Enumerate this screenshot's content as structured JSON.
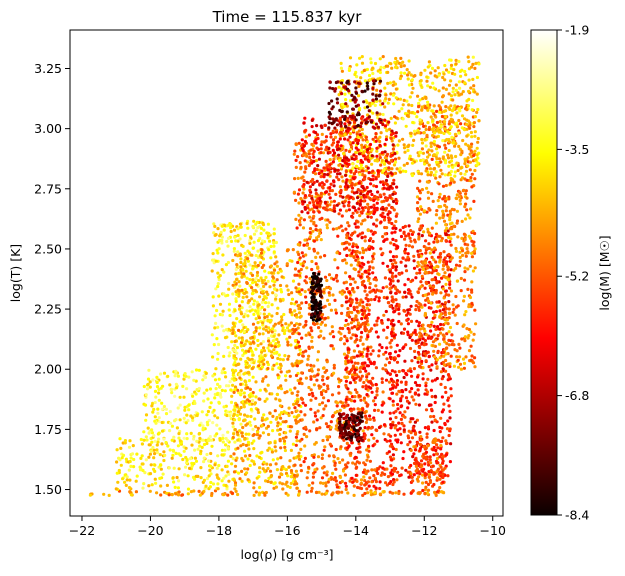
{
  "chart_data": {
    "type": "scatter",
    "title": "Time = 115.837 kyr",
    "xlabel": "log(ρ) [g cm⁻³]",
    "ylabel": "log(T) [K]",
    "xlim": [
      -22.35,
      -9.7
    ],
    "ylim": [
      1.39,
      3.41
    ],
    "xticks": [
      -22,
      -20,
      -18,
      -16,
      -14,
      -12,
      -10
    ],
    "xtick_labels": [
      "−22",
      "−20",
      "−18",
      "−16",
      "−14",
      "−12",
      "−10"
    ],
    "yticks": [
      1.5,
      1.75,
      2.0,
      2.25,
      2.5,
      2.75,
      3.0,
      3.25
    ],
    "ytick_labels": [
      "1.50",
      "1.75",
      "2.00",
      "2.25",
      "2.50",
      "2.75",
      "3.00",
      "3.25"
    ],
    "colorbar": {
      "label": "log(M) [M☉]",
      "colormap": "hot",
      "range": [
        -8.4,
        -1.9
      ],
      "ticks": [
        -1.9,
        -3.5,
        -5.2,
        -6.8,
        -8.4
      ],
      "tick_labels": [
        "-1.9",
        "-3.5",
        "-5.2",
        "-6.8",
        "-8.4"
      ]
    },
    "regions": [
      {
        "x": [
          -21.8,
          -11.4
        ],
        "y": [
          1.475,
          1.495
        ],
        "c": -4.7
      },
      {
        "x": [
          -21.0,
          -17.5
        ],
        "y": [
          1.5,
          1.72
        ],
        "c": -3.6
      },
      {
        "x": [
          -20.2,
          -17.0
        ],
        "y": [
          1.7,
          2.0
        ],
        "c": -3.3
      },
      {
        "x": [
          -18.2,
          -16.3
        ],
        "y": [
          2.0,
          2.62
        ],
        "c": -3.5
      },
      {
        "x": [
          -17.6,
          -15.6
        ],
        "y": [
          1.5,
          2.5
        ],
        "c": -4.3
      },
      {
        "x": [
          -15.8,
          -13.6
        ],
        "y": [
          1.5,
          3.0
        ],
        "c": -5.0
      },
      {
        "x": [
          -14.3,
          -12.8
        ],
        "y": [
          1.5,
          2.9
        ],
        "c": -5.6
      },
      {
        "x": [
          -13.0,
          -11.2
        ],
        "y": [
          1.55,
          2.6
        ],
        "c": -5.8
      },
      {
        "x": [
          -12.2,
          -10.5
        ],
        "y": [
          2.0,
          3.1
        ],
        "c": -4.8
      },
      {
        "x": [
          -14.5,
          -10.4
        ],
        "y": [
          2.8,
          3.3
        ],
        "c": -4.0
      },
      {
        "x": [
          -15.6,
          -12.8
        ],
        "y": [
          2.65,
          3.05
        ],
        "c": -6.0
      },
      {
        "x": [
          -14.8,
          -13.2
        ],
        "y": [
          3.0,
          3.2
        ],
        "c": -7.4
      },
      {
        "x": [
          -15.3,
          -15.0
        ],
        "y": [
          2.2,
          2.4
        ],
        "c": -8.2
      },
      {
        "x": [
          -14.5,
          -13.8
        ],
        "y": [
          1.7,
          1.82
        ],
        "c": -7.5
      },
      {
        "x": [
          -12.4,
          -11.4
        ],
        "y": [
          1.48,
          1.72
        ],
        "c": -5.2
      }
    ]
  }
}
